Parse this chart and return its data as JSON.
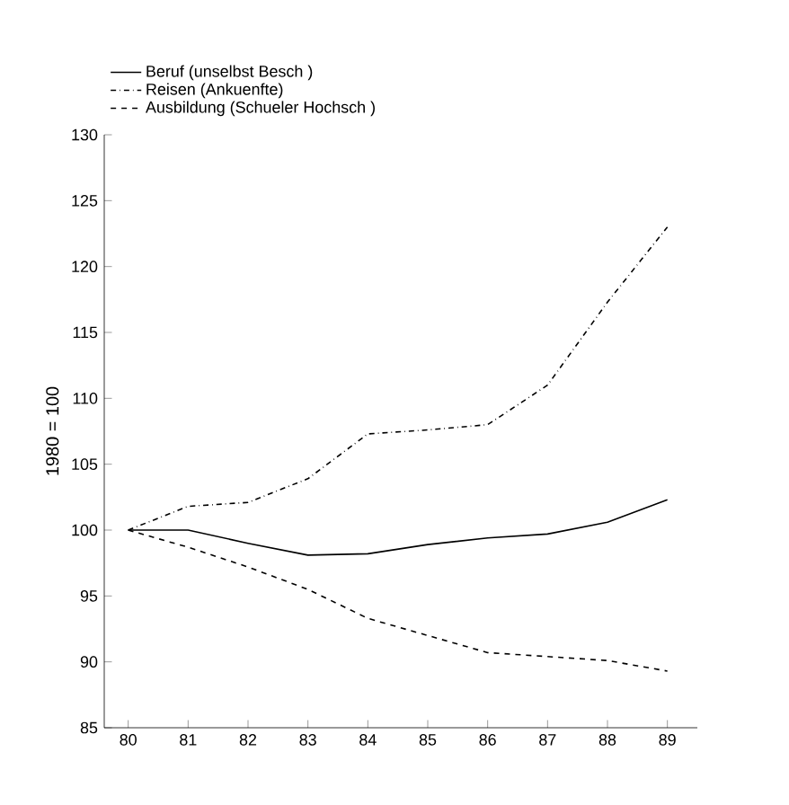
{
  "chart_data": {
    "type": "line",
    "ylabel": "1980 = 100",
    "categories": [
      "80",
      "81",
      "82",
      "83",
      "84",
      "85",
      "86",
      "87",
      "88",
      "89"
    ],
    "series": [
      {
        "name": "Beruf (unselbst  Besch )",
        "color": "#000000",
        "line_style": "solid",
        "values": [
          100,
          100,
          99,
          98.1,
          98.2,
          98.9,
          99.4,
          99.7,
          100.6,
          102.3
        ]
      },
      {
        "name": "Reisen (Ankuenfte)",
        "color": "#000000",
        "line_style": "dashdot",
        "values": [
          100,
          101.8,
          102.1,
          103.9,
          107.3,
          107.6,
          108,
          111,
          117.3,
          123
        ]
      },
      {
        "name": "Ausbildung  (Schueler Hochsch )",
        "color": "#000000",
        "line_style": "dashed",
        "values": [
          100,
          98.7,
          97.2,
          95.5,
          93.3,
          92,
          90.7,
          90.4,
          90.1,
          89.3
        ]
      }
    ],
    "ylim": [
      85,
      130
    ],
    "yticks": [
      85,
      90,
      95,
      100,
      105,
      110,
      115,
      120,
      125,
      130
    ],
    "legend": "top left",
    "grid": false
  }
}
